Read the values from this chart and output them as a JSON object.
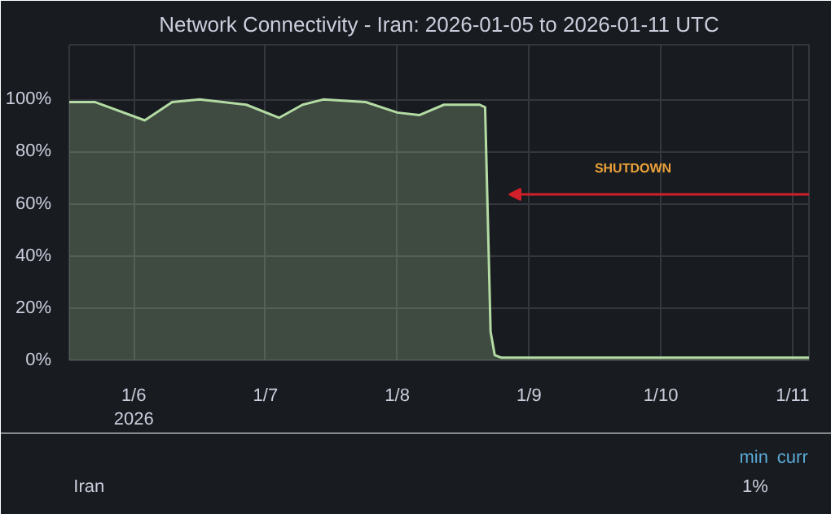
{
  "chart_data": {
    "type": "area",
    "title": "Network Connectivity - Iran: 2026-01-05 to 2026-01-11 UTC",
    "x": [
      "2026-01-05T12:15",
      "2026-01-05T17:00",
      "2026-01-06T02:00",
      "2026-01-06T07:00",
      "2026-01-06T12:00",
      "2026-01-06T20:30",
      "2026-01-07T02:30",
      "2026-01-07T06:45",
      "2026-01-07T10:30",
      "2026-01-07T18:15",
      "2026-01-08T00:00",
      "2026-01-08T04:00",
      "2026-01-08T08:30",
      "2026-01-08T15:00",
      "2026-01-08T16:00",
      "2026-01-08T17:00",
      "2026-01-08T17:45",
      "2026-01-08T19:00",
      "2026-01-11T03:00"
    ],
    "series": [
      {
        "name": "Iran",
        "color": "#b3dba3",
        "values": [
          99,
          99,
          92,
          99,
          100,
          98,
          93,
          98,
          100,
          99,
          95,
          94,
          98,
          98,
          97,
          11,
          2,
          1,
          1
        ]
      }
    ],
    "xlim": [
      "2026-01-05T12:15",
      "2026-01-11T03:00"
    ],
    "xticks": [
      {
        "value": "2026-01-06",
        "label": "1/6\n2026"
      },
      {
        "value": "2026-01-07",
        "label": "1/7"
      },
      {
        "value": "2026-01-08",
        "label": "1/8"
      },
      {
        "value": "2026-01-09",
        "label": "1/9"
      },
      {
        "value": "2026-01-10",
        "label": "1/10"
      },
      {
        "value": "2026-01-11",
        "label": "1/11"
      }
    ],
    "ylim": [
      0,
      121
    ],
    "yticks": [
      {
        "value": 0,
        "label": "0%"
      },
      {
        "value": 20,
        "label": "20%"
      },
      {
        "value": 40,
        "label": "40%"
      },
      {
        "value": 60,
        "label": "60%"
      },
      {
        "value": 80,
        "label": "80%"
      },
      {
        "value": 100,
        "label": "100%"
      }
    ],
    "annotations": [
      "SHUTDOWN",
      "min",
      "curr",
      "1%"
    ],
    "grid": true
  }
}
